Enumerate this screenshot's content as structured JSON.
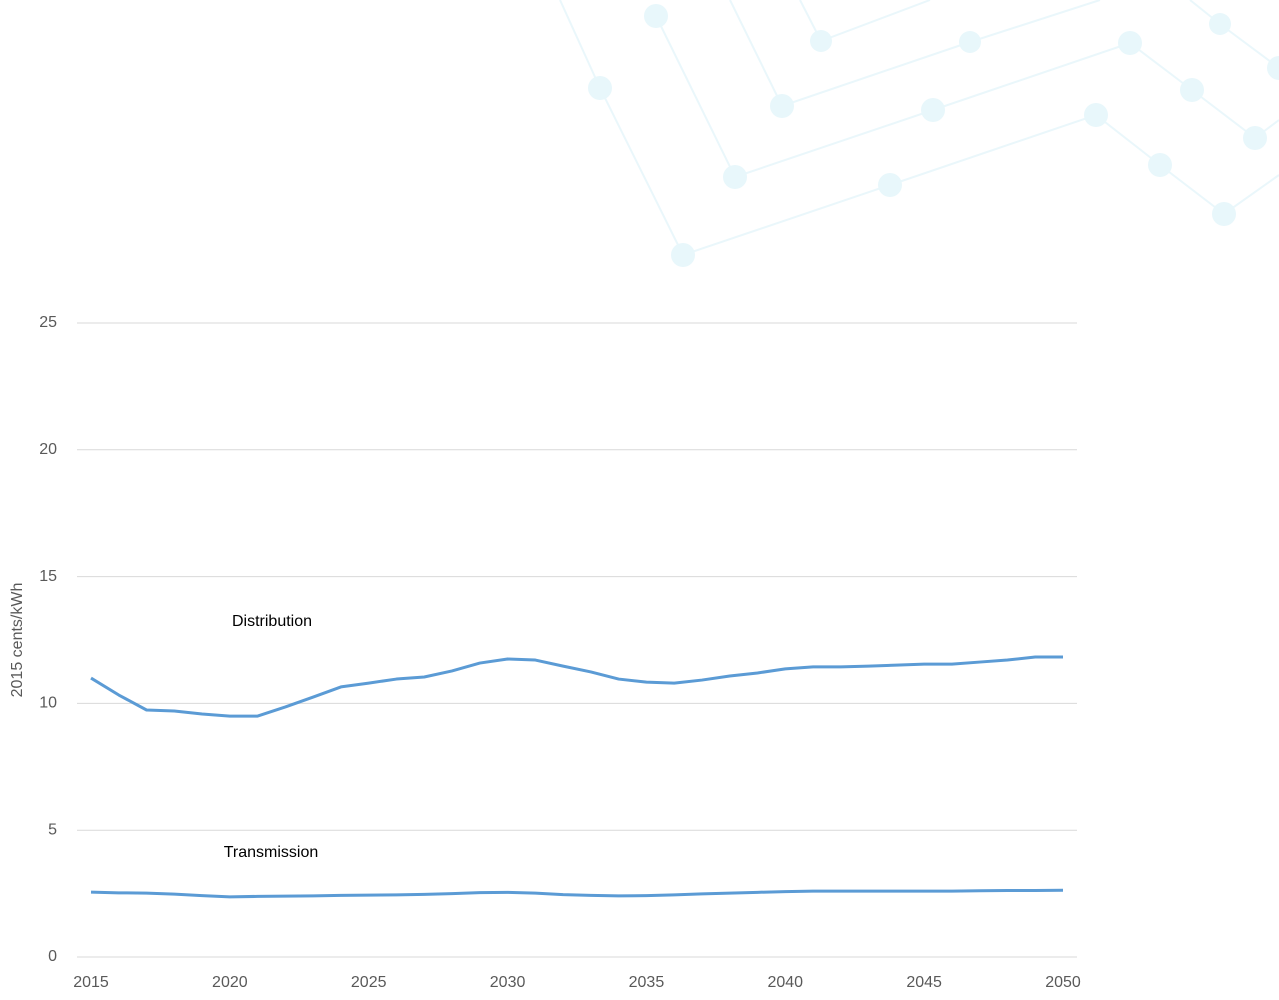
{
  "chart_data": {
    "type": "line",
    "y_label": "2015 cents/kWh",
    "x": [
      2015,
      2016,
      2017,
      2018,
      2019,
      2020,
      2021,
      2022,
      2023,
      2024,
      2025,
      2026,
      2027,
      2028,
      2029,
      2030,
      2031,
      2032,
      2033,
      2034,
      2035,
      2036,
      2037,
      2038,
      2039,
      2040,
      2041,
      2042,
      2043,
      2044,
      2045,
      2046,
      2047,
      2048,
      2049,
      2050
    ],
    "series": [
      {
        "name": "Distribution",
        "color": "#5b9bd5",
        "values": [
          11.0,
          10.33,
          9.74,
          9.7,
          9.58,
          9.5,
          9.5,
          9.86,
          10.25,
          10.65,
          10.8,
          10.96,
          11.04,
          11.28,
          11.59,
          11.75,
          11.71,
          11.47,
          11.24,
          10.96,
          10.84,
          10.8,
          10.92,
          11.08,
          11.2,
          11.36,
          11.44,
          11.44,
          11.47,
          11.51,
          11.55,
          11.55,
          11.63,
          11.71,
          11.83,
          11.83
        ]
      },
      {
        "name": "Transmission",
        "color": "#5b9bd5",
        "values": [
          2.56,
          2.53,
          2.52,
          2.48,
          2.42,
          2.37,
          2.39,
          2.4,
          2.41,
          2.43,
          2.44,
          2.45,
          2.47,
          2.5,
          2.54,
          2.55,
          2.52,
          2.46,
          2.43,
          2.41,
          2.42,
          2.45,
          2.49,
          2.52,
          2.55,
          2.58,
          2.6,
          2.6,
          2.6,
          2.6,
          2.6,
          2.6,
          2.61,
          2.62,
          2.62,
          2.63
        ]
      }
    ],
    "xlim": [
      2015,
      2050
    ],
    "xticks": [
      2015,
      2020,
      2025,
      2030,
      2035,
      2040,
      2045,
      2050
    ],
    "ylim": [
      0,
      25
    ],
    "yticks": [
      0,
      5,
      10,
      15,
      20,
      25
    ],
    "grid": true
  }
}
